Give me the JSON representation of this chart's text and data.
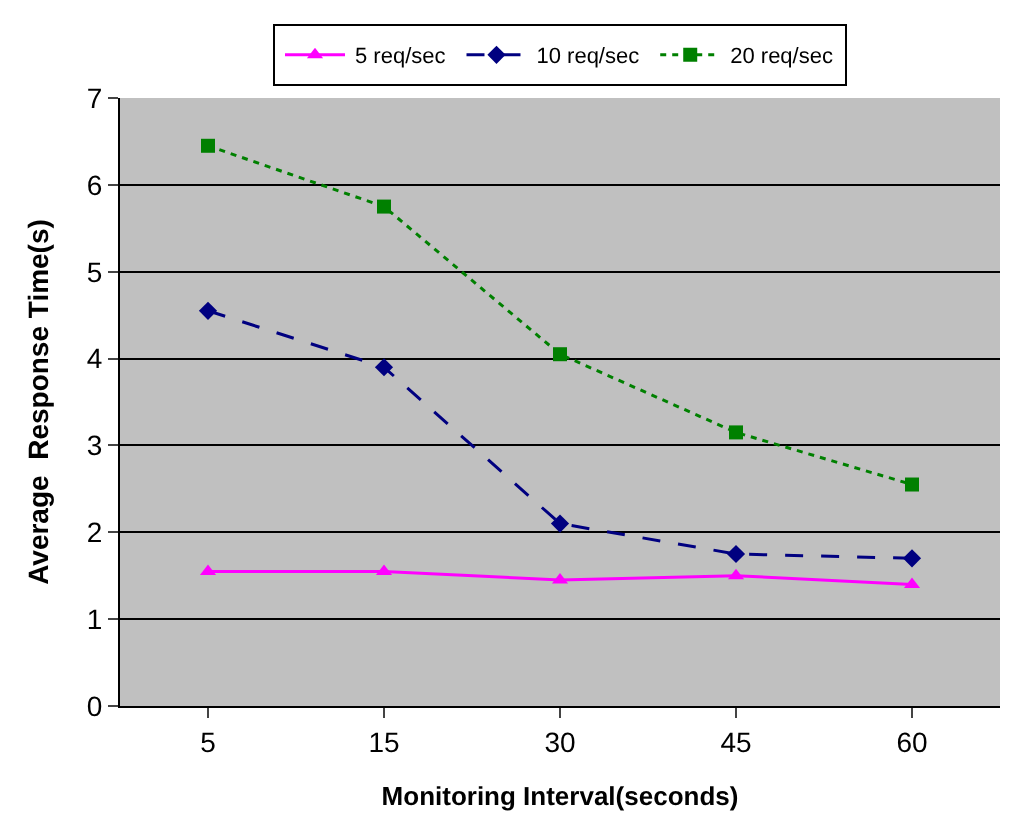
{
  "chart_data": {
    "type": "line",
    "xlabel": "Monitoring Interval(seconds)",
    "ylabel": "Average  Response Time(s)",
    "categories": [
      "5",
      "15",
      "30",
      "45",
      "60"
    ],
    "ylim": [
      0,
      7
    ],
    "yticks": [
      0,
      1,
      2,
      3,
      4,
      5,
      6,
      7
    ],
    "grid": "y",
    "legend": "top",
    "series": [
      {
        "name": "5 req/sec",
        "color": "#ff00ff",
        "marker": "triangle",
        "line_style": "solid",
        "values": [
          1.55,
          1.55,
          1.45,
          1.5,
          1.4
        ]
      },
      {
        "name": "10 req/sec",
        "color": "#000080",
        "marker": "diamond",
        "line_style": "dashed",
        "values": [
          4.55,
          3.9,
          2.1,
          1.75,
          1.7
        ]
      },
      {
        "name": "20 req/sec",
        "color": "#008000",
        "marker": "square",
        "line_style": "dotted",
        "values": [
          6.45,
          5.75,
          4.05,
          3.15,
          2.55
        ]
      }
    ]
  }
}
